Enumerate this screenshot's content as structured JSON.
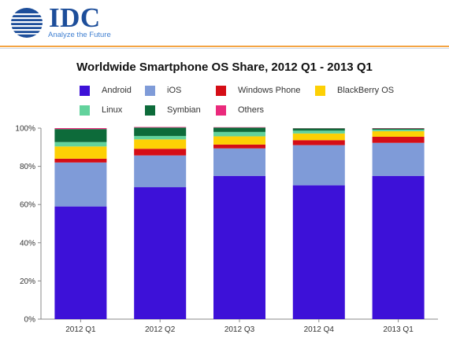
{
  "header": {
    "logo_text": "IDC",
    "tagline": "Analyze the Future"
  },
  "colors": {
    "Android": "#3d11d8",
    "iOS": "#7f9bd8",
    "Windows Phone": "#d50d16",
    "BlackBerry OS": "#fdd004",
    "Linux": "#62d29c",
    "Symbian": "#0d6b3a",
    "Others": "#ea2a7c"
  },
  "chart_data": {
    "type": "bar",
    "stacked": true,
    "title": "Worldwide Smartphone OS Share, 2012 Q1 - 2013 Q1",
    "xlabel": "",
    "ylabel": "",
    "ylim": [
      0,
      100
    ],
    "yticks": [
      "0%",
      "20%",
      "40%",
      "60%",
      "80%",
      "100%"
    ],
    "legend_position": "top",
    "categories": [
      "2012 Q1",
      "2012 Q2",
      "2012 Q3",
      "2012 Q4",
      "2013 Q1"
    ],
    "series": [
      {
        "name": "Android",
        "values": [
          59.0,
          69.1,
          75.0,
          70.1,
          75.0
        ]
      },
      {
        "name": "iOS",
        "values": [
          23.0,
          16.6,
          14.4,
          21.0,
          17.3
        ]
      },
      {
        "name": "Windows Phone",
        "values": [
          2.0,
          3.5,
          2.0,
          2.6,
          3.2
        ]
      },
      {
        "name": "BlackBerry OS",
        "values": [
          6.4,
          4.9,
          4.3,
          3.5,
          2.9
        ]
      },
      {
        "name": "Linux",
        "values": [
          2.3,
          1.8,
          2.3,
          1.5,
          0.8
        ]
      },
      {
        "name": "Symbian",
        "values": [
          6.8,
          4.4,
          2.3,
          1.2,
          0.6
        ]
      },
      {
        "name": "Others",
        "values": [
          0.5,
          0.3,
          0.2,
          0.1,
          0.2
        ]
      }
    ]
  }
}
